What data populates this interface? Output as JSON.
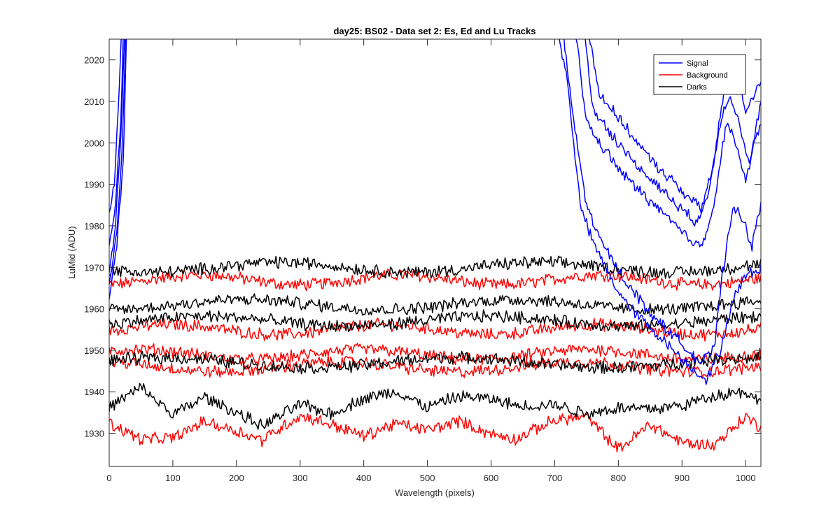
{
  "chart_data": {
    "type": "line",
    "title": "day25: BS02 - Data set 2: Es, Ed and Lu Tracks",
    "xlabel": "Wavelength (pixels)",
    "ylabel": "LuMid (ADU)",
    "xlim": [
      0,
      1024
    ],
    "ylim": [
      1922,
      2025
    ],
    "x_ticks": [
      0,
      100,
      200,
      300,
      400,
      500,
      600,
      700,
      800,
      900,
      1000
    ],
    "y_ticks": [
      1930,
      1940,
      1950,
      1960,
      1970,
      1980,
      1990,
      2000,
      2010,
      2020
    ],
    "grid": false,
    "legend_position": "top-right",
    "colors": {
      "Signal": "#0000ff",
      "Background": "#ff0000",
      "Darks": "#000000"
    },
    "series": [
      {
        "name": "Signal",
        "color": "#0000ff",
        "x": [
          0,
          8,
          15,
          20,
          700,
          720,
          740,
          760,
          780,
          800,
          820,
          840,
          860,
          880,
          900,
          920,
          940,
          960,
          980,
          1000,
          1024
        ],
        "y": [
          1984,
          1990,
          2010,
          2030,
          2030,
          2015,
          1985,
          1976,
          1970,
          1964,
          1960,
          1957,
          1954,
          1951,
          1948,
          1945,
          1943,
          1950,
          1962,
          1968,
          1970
        ]
      },
      {
        "name": "Signal",
        "color": "#0000ff",
        "x": [
          0,
          10,
          18,
          23,
          710,
          730,
          750,
          770,
          790,
          810,
          830,
          850,
          870,
          890,
          910,
          930,
          950,
          965,
          980,
          1000,
          1010,
          1024
        ],
        "y": [
          1975,
          1985,
          2005,
          2030,
          2030,
          2005,
          1985,
          1977,
          1972,
          1967,
          1963,
          1959,
          1956,
          1953,
          1950,
          1947,
          1950,
          1970,
          1985,
          1980,
          1975,
          1985
        ]
      },
      {
        "name": "Signal",
        "color": "#0000ff",
        "x": [
          0,
          10,
          18,
          25,
          730,
          750,
          770,
          790,
          810,
          830,
          850,
          870,
          890,
          910,
          930,
          950,
          970,
          985,
          1000,
          1024
        ],
        "y": [
          1970,
          1980,
          2000,
          2030,
          2030,
          2005,
          2000,
          1996,
          1992,
          1989,
          1986,
          1983,
          1980,
          1977,
          1975,
          1985,
          2005,
          2000,
          1990,
          2010
        ]
      },
      {
        "name": "Signal",
        "color": "#0000ff",
        "x": [
          0,
          12,
          20,
          27,
          745,
          760,
          780,
          800,
          820,
          840,
          860,
          880,
          900,
          920,
          940,
          960,
          975,
          990,
          1005,
          1024
        ],
        "y": [
          1965,
          1978,
          1998,
          2030,
          2030,
          2008,
          2004,
          2000,
          1996,
          1993,
          1990,
          1987,
          1984,
          1981,
          1986,
          2005,
          2012,
          2005,
          1995,
          2005
        ]
      },
      {
        "name": "Signal",
        "color": "#0000ff",
        "x": [
          0,
          12,
          22,
          28,
          750,
          770,
          790,
          810,
          830,
          850,
          870,
          890,
          910,
          930,
          950,
          965,
          980,
          1000,
          1024
        ],
        "y": [
          1962,
          1975,
          1995,
          2030,
          2030,
          2012,
          2008,
          2004,
          2000,
          1996,
          1993,
          1990,
          1987,
          1984,
          1995,
          2012,
          2018,
          2008,
          2015
        ]
      },
      {
        "name": "Background",
        "color": "#ff0000",
        "x": [
          0,
          100,
          200,
          300,
          400,
          500,
          600,
          700,
          800,
          900,
          1024
        ],
        "y": [
          1967,
          1967,
          1967,
          1967,
          1967,
          1967,
          1967,
          1967,
          1967,
          1967,
          1967
        ]
      },
      {
        "name": "Background",
        "color": "#ff0000",
        "x": [
          0,
          100,
          200,
          300,
          400,
          500,
          600,
          700,
          800,
          900,
          1024
        ],
        "y": [
          1955,
          1955,
          1955,
          1955,
          1955,
          1955,
          1955,
          1955,
          1955,
          1955,
          1955
        ]
      },
      {
        "name": "Background",
        "color": "#ff0000",
        "x": [
          0,
          100,
          200,
          300,
          400,
          500,
          600,
          700,
          800,
          900,
          1024
        ],
        "y": [
          1949,
          1949,
          1949,
          1949,
          1949,
          1949,
          1949,
          1949,
          1949,
          1949,
          1949
        ]
      },
      {
        "name": "Background",
        "color": "#ff0000",
        "x": [
          0,
          100,
          200,
          300,
          400,
          500,
          600,
          700,
          800,
          900,
          1024
        ],
        "y": [
          1946,
          1946,
          1946,
          1946,
          1946,
          1946,
          1946,
          1946,
          1946,
          1946,
          1946
        ]
      },
      {
        "name": "Background",
        "color": "#ff0000",
        "x": [
          0,
          50,
          100,
          150,
          200,
          240,
          300,
          350,
          400,
          450,
          500,
          550,
          600,
          640,
          700,
          750,
          800,
          850,
          900,
          950,
          1000,
          1024
        ],
        "y": [
          1932,
          1929,
          1930,
          1934,
          1931,
          1928,
          1933,
          1931,
          1929,
          1933,
          1932,
          1934,
          1930,
          1928,
          1932,
          1933,
          1926,
          1933,
          1929,
          1928,
          1934,
          1931
        ]
      },
      {
        "name": "Darks",
        "color": "#000000",
        "x": [
          0,
          100,
          200,
          300,
          400,
          500,
          600,
          700,
          800,
          900,
          1024
        ],
        "y": [
          1970,
          1970,
          1970,
          1970,
          1970,
          1970,
          1970,
          1970,
          1970,
          1970,
          1970
        ]
      },
      {
        "name": "Darks",
        "color": "#000000",
        "x": [
          0,
          100,
          200,
          300,
          400,
          500,
          600,
          700,
          800,
          900,
          1024
        ],
        "y": [
          1961,
          1961,
          1961,
          1961,
          1961,
          1961,
          1961,
          1961,
          1961,
          1961,
          1961
        ]
      },
      {
        "name": "Darks",
        "color": "#000000",
        "x": [
          0,
          100,
          200,
          300,
          400,
          500,
          600,
          700,
          800,
          900,
          1024
        ],
        "y": [
          1957,
          1957,
          1957,
          1957,
          1957,
          1957,
          1957,
          1957,
          1957,
          1957,
          1957
        ]
      },
      {
        "name": "Darks",
        "color": "#000000",
        "x": [
          0,
          100,
          200,
          300,
          400,
          500,
          600,
          700,
          800,
          900,
          1024
        ],
        "y": [
          1947,
          1947,
          1947,
          1947,
          1947,
          1947,
          1947,
          1947,
          1947,
          1947,
          1947
        ]
      },
      {
        "name": "Darks",
        "color": "#000000",
        "x": [
          0,
          50,
          100,
          150,
          200,
          240,
          300,
          350,
          400,
          450,
          500,
          550,
          600,
          640,
          700,
          750,
          800,
          850,
          900,
          950,
          1000,
          1024
        ],
        "y": [
          1935,
          1940,
          1934,
          1939,
          1936,
          1933,
          1938,
          1935,
          1938,
          1939,
          1935,
          1938,
          1938,
          1937,
          1938,
          1936,
          1937,
          1936,
          1936,
          1938,
          1939,
          1936
        ]
      }
    ],
    "legend": [
      "Signal",
      "Background",
      "Darks"
    ]
  }
}
